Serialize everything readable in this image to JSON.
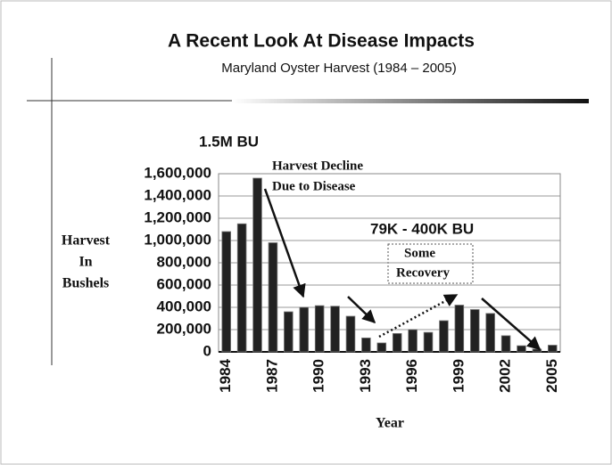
{
  "chart_data": {
    "type": "bar",
    "title": "A Recent Look At Disease Impacts",
    "subtitle": "Maryland Oyster Harvest (1984 – 2005)",
    "y_label": [
      "Harvest",
      "In",
      "Bushels"
    ],
    "x_label": "Year",
    "annotations": [
      "1.5M BU",
      "Harvest Decline",
      "Due to Disease",
      "79K - 400K BU",
      "Some",
      "Recovery"
    ],
    "categories": [
      "1984",
      null,
      null,
      "1987",
      null,
      null,
      "1990",
      null,
      null,
      "1993",
      null,
      null,
      "1996",
      null,
      null,
      "1999",
      null,
      null,
      "2002",
      null,
      null,
      "2005"
    ],
    "values": [
      1080000,
      1150000,
      1560000,
      980000,
      360000,
      400000,
      415000,
      410000,
      320000,
      125000,
      80000,
      165000,
      200000,
      175000,
      280000,
      420000,
      380000,
      345000,
      145000,
      55000,
      25000,
      60000
    ],
    "color": "#222222",
    "ylim": [
      0,
      1600000
    ],
    "yticks": [
      0,
      {
        "value": 200000,
        "label": "200,000"
      },
      {
        "value": 400000,
        "label": "400,000"
      },
      {
        "value": 600000,
        "label": "600,000"
      },
      {
        "value": 800000,
        "label": "800,000"
      },
      {
        "value": 1000000,
        "label": "1,000,000"
      },
      {
        "value": 1200000,
        "label": "1,200,000"
      },
      {
        "value": 1400000,
        "label": "1,400,000"
      },
      {
        "value": 1600000,
        "label": "1,600,000"
      }
    ],
    "grid": true
  }
}
